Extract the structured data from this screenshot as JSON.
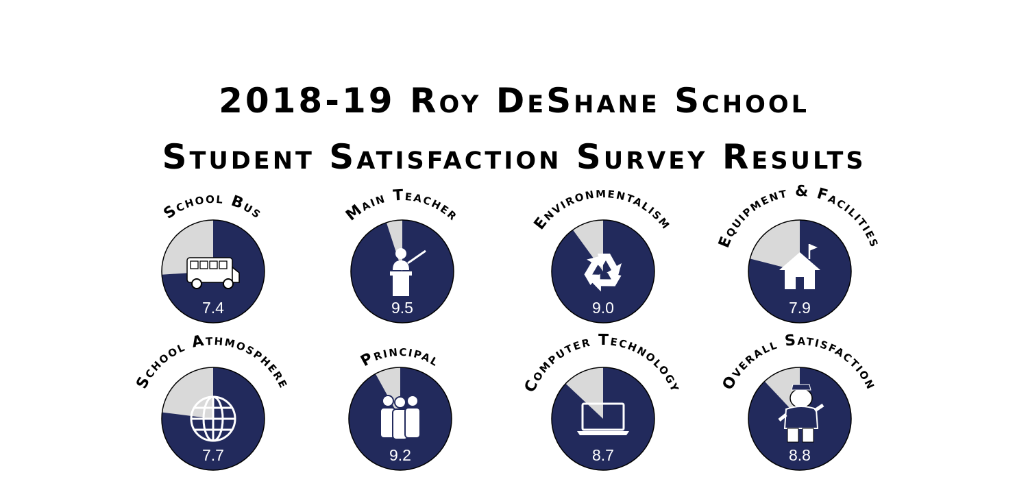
{
  "title": {
    "line1": "2018-19 Roy DeShane School",
    "line2": "Student Satisfaction Survey Results"
  },
  "colors": {
    "filled": "#222a5c",
    "remaining": "#d9d9d9",
    "outline": "#000000",
    "icon": "#ffffff"
  },
  "chart_data": {
    "type": "pie",
    "scale_max": 10,
    "items": [
      {
        "label": "School Bus",
        "value": 7.4,
        "value_label": "7.4",
        "icon": "school-bus-icon"
      },
      {
        "label": "Main Teacher",
        "value": 9.5,
        "value_label": "9.5",
        "icon": "teacher-at-podium-icon"
      },
      {
        "label": "Environmentalism",
        "value": 9.0,
        "value_label": "9.0",
        "icon": "recycle-icon"
      },
      {
        "label": "Equipment & Facilities",
        "value": 7.9,
        "value_label": "7.9",
        "icon": "schoolhouse-icon"
      },
      {
        "label": "School Athmosphere",
        "value": 7.7,
        "value_label": "7.7",
        "icon": "globe-icon"
      },
      {
        "label": "Principal",
        "value": 9.2,
        "value_label": "9.2",
        "icon": "group-of-people-icon"
      },
      {
        "label": "Computer Technology",
        "value": 8.7,
        "value_label": "8.7",
        "icon": "laptop-icon"
      },
      {
        "label": "Overall Satisfaction",
        "value": 8.8,
        "value_label": "8.8",
        "icon": "bulldog-mascot-icon"
      }
    ]
  }
}
